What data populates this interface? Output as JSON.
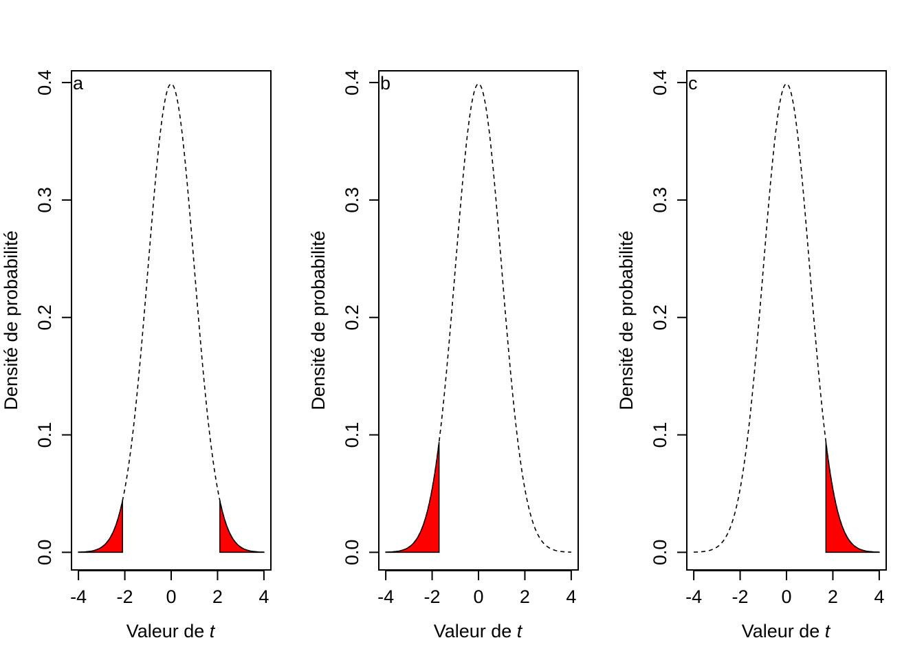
{
  "colors": {
    "shade": "#ff0000",
    "line": "#000000",
    "background": "#ffffff"
  },
  "chart_data": [
    {
      "panel_label": "a",
      "type": "area",
      "distribution": "Student t density (approx. standard normal)",
      "curve": {
        "from": -4,
        "to": 4,
        "style": "dashed"
      },
      "shaded_regions": [
        {
          "x_from": -4,
          "x_to": -2.1
        },
        {
          "x_from": 2.1,
          "x_to": 4
        }
      ],
      "xlabel": "Valeur de",
      "xlabel_var": "t",
      "ylabel": "Densité de probabilité",
      "xlim": [
        -4.3,
        4.3
      ],
      "ylim": [
        -0.015,
        0.41
      ],
      "x_ticks": [
        "-4",
        "-2",
        "0",
        "2",
        "4"
      ],
      "y_ticks": [
        "0.0",
        "0.1",
        "0.2",
        "0.3",
        "0.4"
      ],
      "grid": false
    },
    {
      "panel_label": "b",
      "type": "area",
      "distribution": "Student t density (approx. standard normal)",
      "curve": {
        "from": -4,
        "to": 4,
        "style": "dashed"
      },
      "shaded_regions": [
        {
          "x_from": -4,
          "x_to": -1.7
        }
      ],
      "xlabel": "Valeur de",
      "xlabel_var": "t",
      "ylabel": "Densité de probabilité",
      "xlim": [
        -4.3,
        4.3
      ],
      "ylim": [
        -0.015,
        0.41
      ],
      "x_ticks": [
        "-4",
        "-2",
        "0",
        "2",
        "4"
      ],
      "y_ticks": [
        "0.0",
        "0.1",
        "0.2",
        "0.3",
        "0.4"
      ],
      "grid": false
    },
    {
      "panel_label": "c",
      "type": "area",
      "distribution": "Student t density (approx. standard normal)",
      "curve": {
        "from": -4,
        "to": 4,
        "style": "dashed"
      },
      "shaded_regions": [
        {
          "x_from": 1.7,
          "x_to": 4
        }
      ],
      "xlabel": "Valeur de",
      "xlabel_var": "t",
      "ylabel": "Densité de probabilité",
      "xlim": [
        -4.3,
        4.3
      ],
      "ylim": [
        -0.015,
        0.41
      ],
      "x_ticks": [
        "-4",
        "-2",
        "0",
        "2",
        "4"
      ],
      "y_ticks": [
        "0.0",
        "0.1",
        "0.2",
        "0.3",
        "0.4"
      ],
      "grid": false
    }
  ]
}
